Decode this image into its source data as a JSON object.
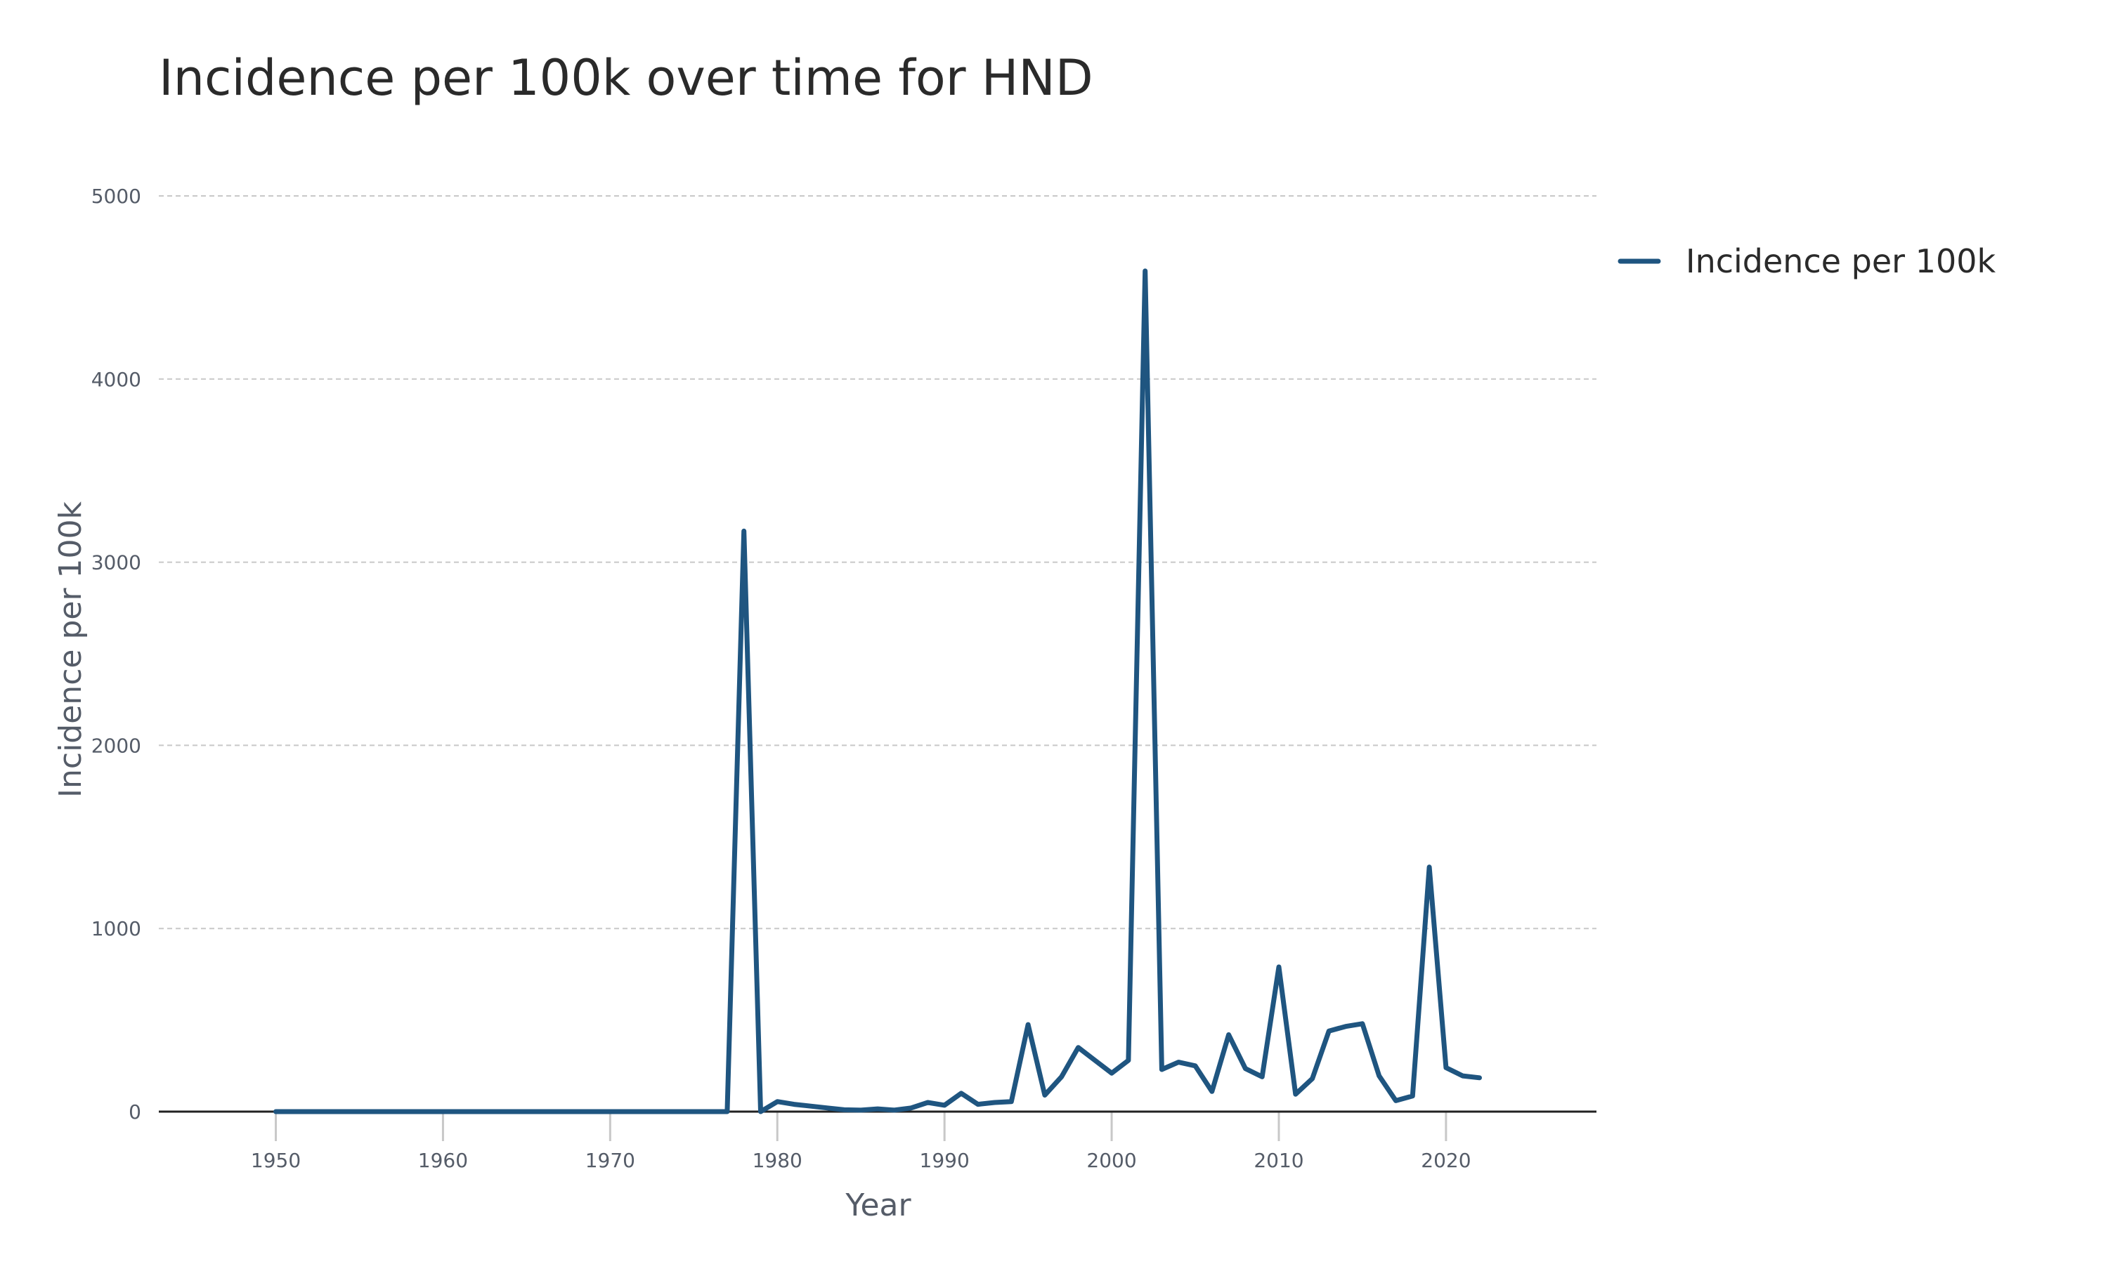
{
  "chart_data": {
    "type": "line",
    "title": "Incidence per 100k over time for HND",
    "xlabel": "Year",
    "ylabel": "Incidence per 100k",
    "xlim": [
      1943,
      2029
    ],
    "ylim": [
      0,
      5000
    ],
    "x_ticks": [
      1950,
      1960,
      1970,
      1980,
      1990,
      2000,
      2010,
      2020
    ],
    "y_ticks": [
      0,
      1000,
      2000,
      3000,
      4000,
      5000
    ],
    "grid": "horizontal dashed",
    "legend_position": "top-right",
    "colors": {
      "series": "#1f5580",
      "grid": "#c8c8c8",
      "zero_line": "#222222"
    },
    "series": [
      {
        "name": "Incidence per 100k",
        "x": [
          1950,
          1951,
          1952,
          1953,
          1954,
          1955,
          1956,
          1957,
          1958,
          1959,
          1960,
          1961,
          1962,
          1963,
          1964,
          1965,
          1966,
          1967,
          1968,
          1969,
          1970,
          1971,
          1972,
          1973,
          1974,
          1975,
          1976,
          1977,
          1978,
          1979,
          1980,
          1981,
          1982,
          1983,
          1984,
          1985,
          1986,
          1987,
          1988,
          1989,
          1990,
          1991,
          1992,
          1993,
          1994,
          1995,
          1996,
          1997,
          1998,
          1999,
          2000,
          2001,
          2002,
          2003,
          2004,
          2005,
          2006,
          2007,
          2008,
          2009,
          2010,
          2011,
          2012,
          2013,
          2014,
          2015,
          2016,
          2017,
          2018,
          2019,
          2020,
          2021,
          2022
        ],
        "y": [
          0,
          0,
          0,
          0,
          0,
          0,
          0,
          0,
          0,
          0,
          0,
          0,
          0,
          0,
          0,
          0,
          0,
          0,
          0,
          0,
          0,
          0,
          0,
          0,
          0,
          0,
          0,
          0,
          3170,
          0,
          55,
          40,
          30,
          20,
          10,
          8,
          15,
          8,
          20,
          50,
          35,
          100,
          40,
          50,
          55,
          475,
          90,
          190,
          350,
          280,
          210,
          280,
          4590,
          230,
          270,
          250,
          110,
          420,
          235,
          190,
          790,
          95,
          180,
          440,
          465,
          480,
          195,
          60,
          85,
          1335,
          240,
          195,
          185
        ]
      }
    ]
  }
}
